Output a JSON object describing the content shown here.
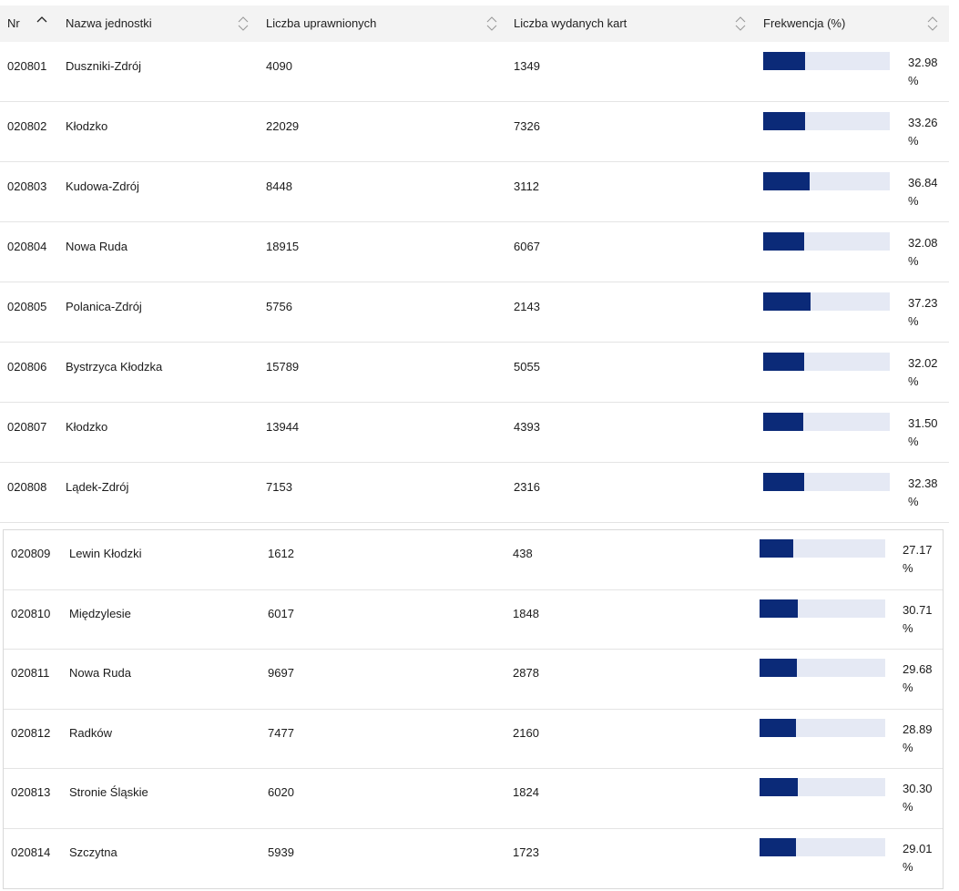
{
  "header": {
    "nr": "Nr",
    "name": "Nazwa jednostki",
    "eligible": "Liczba uprawnionych",
    "cards": "Liczba wydanych kart",
    "turnout": "Frekwencja (%)"
  },
  "rows_top": [
    {
      "nr": "020801",
      "name": "Duszniki-Zdrój",
      "eligible": "4090",
      "cards": "1349",
      "pct": "32.98",
      "unit": "%",
      "fill": 0.3298
    },
    {
      "nr": "020802",
      "name": "Kłodzko",
      "eligible": "22029",
      "cards": "7326",
      "pct": "33.26",
      "unit": "%",
      "fill": 0.3326
    },
    {
      "nr": "020803",
      "name": "Kudowa-Zdrój",
      "eligible": "8448",
      "cards": "3112",
      "pct": "36.84",
      "unit": "%",
      "fill": 0.3684
    },
    {
      "nr": "020804",
      "name": "Nowa Ruda",
      "eligible": "18915",
      "cards": "6067",
      "pct": "32.08",
      "unit": "%",
      "fill": 0.3208
    },
    {
      "nr": "020805",
      "name": "Polanica-Zdrój",
      "eligible": "5756",
      "cards": "2143",
      "pct": "37.23",
      "unit": "%",
      "fill": 0.3723
    },
    {
      "nr": "020806",
      "name": "Bystrzyca Kłodzka",
      "eligible": "15789",
      "cards": "5055",
      "pct": "32.02",
      "unit": "%",
      "fill": 0.3202
    },
    {
      "nr": "020807",
      "name": "Kłodzko",
      "eligible": "13944",
      "cards": "4393",
      "pct": "31.50",
      "unit": "%",
      "fill": 0.315
    },
    {
      "nr": "020808",
      "name": "Lądek-Zdrój",
      "eligible": "7153",
      "cards": "2316",
      "pct": "32.38",
      "unit": "%",
      "fill": 0.3238
    }
  ],
  "rows_bottom": [
    {
      "nr": "020809",
      "name": "Lewin Kłodzki",
      "eligible": "1612",
      "cards": "438",
      "pct": "27.17",
      "unit": "%",
      "fill": 0.2717
    },
    {
      "nr": "020810",
      "name": "Międzylesie",
      "eligible": "6017",
      "cards": "1848",
      "pct": "30.71",
      "unit": "%",
      "fill": 0.3071
    },
    {
      "nr": "020811",
      "name": "Nowa Ruda",
      "eligible": "9697",
      "cards": "2878",
      "pct": "29.68",
      "unit": "%",
      "fill": 0.2968
    },
    {
      "nr": "020812",
      "name": "Radków",
      "eligible": "7477",
      "cards": "2160",
      "pct": "28.89",
      "unit": "%",
      "fill": 0.2889
    },
    {
      "nr": "020813",
      "name": "Stronie Śląskie",
      "eligible": "6020",
      "cards": "1824",
      "pct": "30.30",
      "unit": "%",
      "fill": 0.303
    },
    {
      "nr": "020814",
      "name": "Szczytna",
      "eligible": "5939",
      "cards": "1723",
      "pct": "29.01",
      "unit": "%",
      "fill": 0.2901
    }
  ],
  "colors": {
    "bar": "#0b2a78",
    "track": "#e5e9f4",
    "header": "#f3f3f3"
  }
}
